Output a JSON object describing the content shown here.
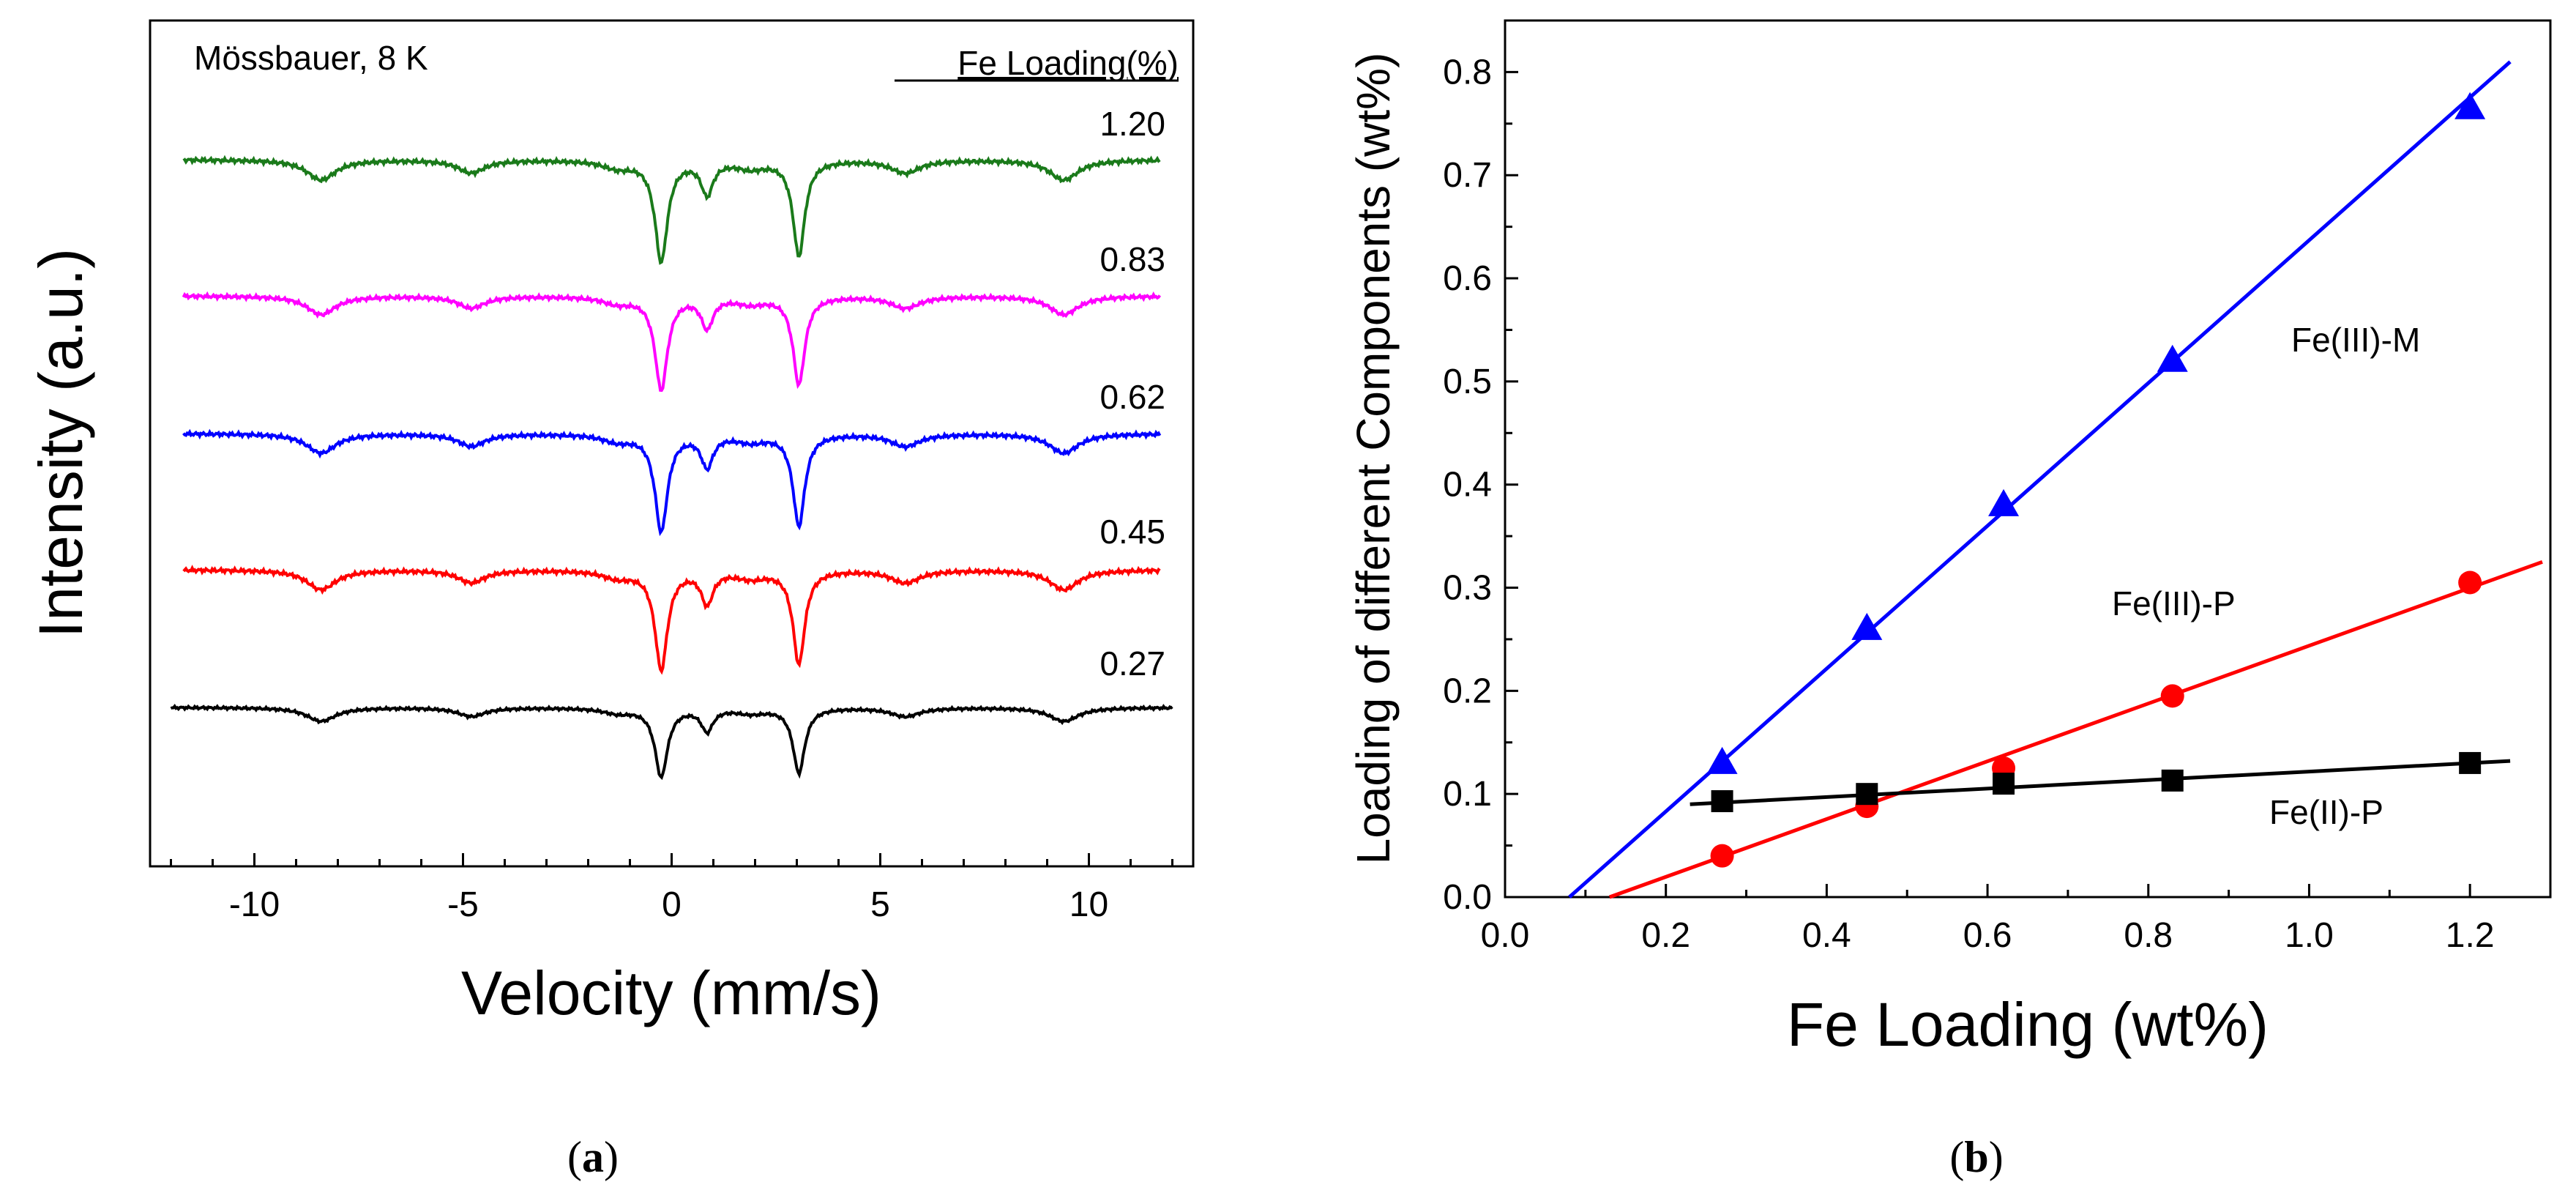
{
  "chart_data": [
    {
      "type": "line",
      "panel_label": "a",
      "title": "",
      "annotation": "Mössbauer, 8 K",
      "legend_title": "Fe Loading(%)",
      "xlabel": "Velocity (mm/s)",
      "ylabel": "Intensity (a.u.)",
      "xlim": [
        -12.5,
        12.5
      ],
      "x_ticks": [
        -10,
        -5,
        0,
        5,
        10
      ],
      "y_ticks_labeled": false,
      "series": [
        {
          "name": "1.20",
          "color": "#1a7a1a",
          "x_range": [
            -11.7,
            11.7
          ]
        },
        {
          "name": "0.83",
          "color": "#ff00ff",
          "x_range": [
            -11.7,
            11.7
          ]
        },
        {
          "name": "0.62",
          "color": "#0000ff",
          "x_range": [
            -11.7,
            11.7
          ]
        },
        {
          "name": "0.45",
          "color": "#ff0000",
          "x_range": [
            -11.7,
            11.7
          ]
        },
        {
          "name": "0.27",
          "color": "#000000",
          "x_range": [
            -12,
            12
          ]
        }
      ]
    },
    {
      "type": "scatter",
      "panel_label": "b",
      "title": "",
      "xlabel": "Fe Loading (wt%)",
      "ylabel": "Loading of different Components (wt%)",
      "xlim": [
        0.0,
        1.3
      ],
      "ylim": [
        0.0,
        0.85
      ],
      "x_ticks": [
        0.0,
        0.2,
        0.4,
        0.6,
        0.8,
        1.0,
        1.2
      ],
      "y_ticks": [
        0.0,
        0.1,
        0.2,
        0.3,
        0.4,
        0.5,
        0.6,
        0.7,
        0.8
      ],
      "x_tick_labels": [
        "0.0",
        "0.2",
        "0.4",
        "0.6",
        "0.8",
        "1.0",
        "1.2"
      ],
      "y_tick_labels": [
        "0.0",
        "0.1",
        "0.2",
        "0.3",
        "0.4",
        "0.5",
        "0.6",
        "0.7",
        "0.8"
      ],
      "series": [
        {
          "name": "Fe(III)-M",
          "color": "#0000ff",
          "marker": "triangle",
          "x": [
            0.27,
            0.45,
            0.62,
            0.83,
            1.2
          ],
          "y": [
            0.13,
            0.26,
            0.38,
            0.52,
            0.765
          ],
          "fit": [
            [
              0.08,
              0.0
            ],
            [
              1.25,
              0.81
            ]
          ]
        },
        {
          "name": "Fe(III)-P",
          "color": "#ff0000",
          "marker": "circle",
          "x": [
            0.27,
            0.45,
            0.62,
            0.83,
            1.2
          ],
          "y": [
            0.04,
            0.088,
            0.125,
            0.195,
            0.305
          ],
          "fit": [
            [
              0.13,
              0.0
            ],
            [
              1.29,
              0.325
            ]
          ]
        },
        {
          "name": "Fe(II)-P",
          "color": "#000000",
          "marker": "square",
          "x": [
            0.27,
            0.45,
            0.62,
            0.83,
            1.2
          ],
          "y": [
            0.093,
            0.1,
            0.11,
            0.113,
            0.13
          ],
          "fit": [
            [
              0.23,
              0.09
            ],
            [
              1.25,
              0.132
            ]
          ]
        }
      ]
    }
  ]
}
